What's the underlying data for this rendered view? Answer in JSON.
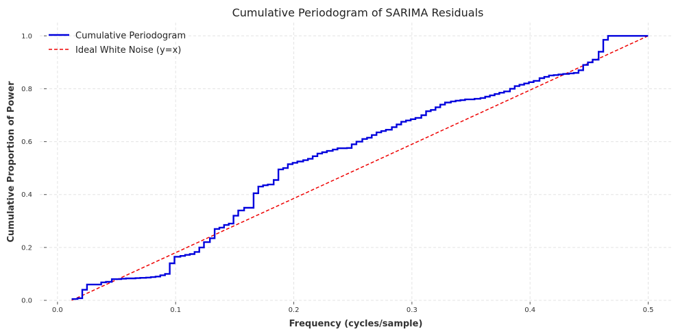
{
  "chart_data": {
    "type": "line",
    "title": "Cumulative Periodogram of SARIMA Residuals",
    "xlabel": "Frequency (cycles/sample)",
    "ylabel": "Cumulative Proportion of Power",
    "xlim": [
      -0.015,
      0.52
    ],
    "ylim": [
      0,
      1.05
    ],
    "x_ticks": [
      0.0,
      0.1,
      0.2,
      0.3,
      0.4,
      0.5
    ],
    "x_tick_labels": [
      "0.0",
      "0.1",
      "0.2",
      "0.3",
      "0.4",
      "0.5"
    ],
    "y_ticks": [
      0.0,
      0.2,
      0.4,
      0.6,
      0.8,
      1.0
    ],
    "y_tick_labels": [
      "0.0",
      "0.2",
      "0.4",
      "0.6",
      "0.8",
      "1.0"
    ],
    "grid": true,
    "legend_position": "top-left",
    "series": [
      {
        "name": "Cumulative Periodogram",
        "style": "step",
        "color": "#0000dd",
        "x": [
          0.012,
          0.017,
          0.021,
          0.025,
          0.029,
          0.033,
          0.037,
          0.041,
          0.046,
          0.05,
          0.054,
          0.058,
          0.062,
          0.066,
          0.07,
          0.075,
          0.079,
          0.083,
          0.087,
          0.091,
          0.095,
          0.099,
          0.104,
          0.108,
          0.112,
          0.116,
          0.12,
          0.124,
          0.129,
          0.133,
          0.137,
          0.141,
          0.145,
          0.149,
          0.153,
          0.158,
          0.162,
          0.166,
          0.17,
          0.174,
          0.178,
          0.183,
          0.187,
          0.191,
          0.195,
          0.199,
          0.203,
          0.208,
          0.212,
          0.216,
          0.22,
          0.224,
          0.228,
          0.233,
          0.237,
          0.241,
          0.245,
          0.249,
          0.253,
          0.258,
          0.262,
          0.266,
          0.27,
          0.274,
          0.278,
          0.283,
          0.287,
          0.291,
          0.295,
          0.299,
          0.303,
          0.308,
          0.312,
          0.316,
          0.32,
          0.324,
          0.328,
          0.333,
          0.337,
          0.341,
          0.345,
          0.349,
          0.353,
          0.358,
          0.362,
          0.366,
          0.37,
          0.374,
          0.378,
          0.383,
          0.387,
          0.391,
          0.395,
          0.399,
          0.403,
          0.408,
          0.412,
          0.416,
          0.42,
          0.424,
          0.428,
          0.433,
          0.437,
          0.441,
          0.445,
          0.449,
          0.453,
          0.458,
          0.462,
          0.466,
          0.47,
          0.474,
          0.478,
          0.483,
          0.487,
          0.491,
          0.495,
          0.5
        ],
        "y": [
          0.005,
          0.008,
          0.04,
          0.06,
          0.06,
          0.06,
          0.068,
          0.07,
          0.08,
          0.08,
          0.082,
          0.083,
          0.083,
          0.084,
          0.085,
          0.086,
          0.088,
          0.09,
          0.095,
          0.1,
          0.14,
          0.165,
          0.168,
          0.172,
          0.175,
          0.183,
          0.2,
          0.22,
          0.235,
          0.27,
          0.275,
          0.285,
          0.29,
          0.32,
          0.34,
          0.35,
          0.35,
          0.405,
          0.43,
          0.435,
          0.438,
          0.455,
          0.495,
          0.5,
          0.515,
          0.52,
          0.525,
          0.53,
          0.535,
          0.545,
          0.555,
          0.56,
          0.565,
          0.57,
          0.575,
          0.575,
          0.576,
          0.59,
          0.6,
          0.61,
          0.615,
          0.625,
          0.635,
          0.64,
          0.645,
          0.655,
          0.665,
          0.675,
          0.68,
          0.685,
          0.69,
          0.7,
          0.715,
          0.72,
          0.73,
          0.74,
          0.748,
          0.752,
          0.755,
          0.757,
          0.76,
          0.76,
          0.762,
          0.765,
          0.77,
          0.775,
          0.78,
          0.785,
          0.79,
          0.8,
          0.81,
          0.815,
          0.82,
          0.825,
          0.83,
          0.84,
          0.845,
          0.85,
          0.852,
          0.854,
          0.856,
          0.858,
          0.86,
          0.87,
          0.89,
          0.9,
          0.91,
          0.94,
          0.985,
          1.0,
          1.0,
          1.0,
          1.0,
          1.0,
          1.0,
          1.0,
          1.0,
          1.0
        ]
      },
      {
        "name": "Ideal White Noise (y=x)",
        "style": "dashed",
        "color": "#ee0000",
        "x": [
          0.012,
          0.5
        ],
        "y": [
          0.0,
          1.0
        ]
      }
    ]
  }
}
